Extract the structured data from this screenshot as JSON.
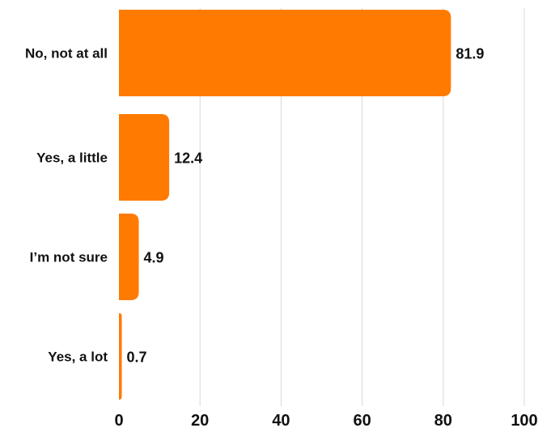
{
  "chart_data": {
    "type": "bar",
    "orientation": "horizontal",
    "categories": [
      "No, not at all",
      "Yes, a little",
      "I’m not sure",
      "Yes, a lot"
    ],
    "values": [
      81.9,
      12.4,
      4.9,
      0.7
    ],
    "value_labels": [
      "81.9",
      "12.4",
      "4.9",
      "0.7"
    ],
    "xlim": [
      0,
      100
    ],
    "xticks": [
      0,
      20,
      40,
      60,
      80,
      100
    ],
    "xtick_labels": [
      "0",
      "20",
      "40",
      "60",
      "80",
      "100"
    ],
    "grid": "vertical",
    "bar_color": "#FF7A00",
    "grid_color": "#D9D9D9"
  }
}
